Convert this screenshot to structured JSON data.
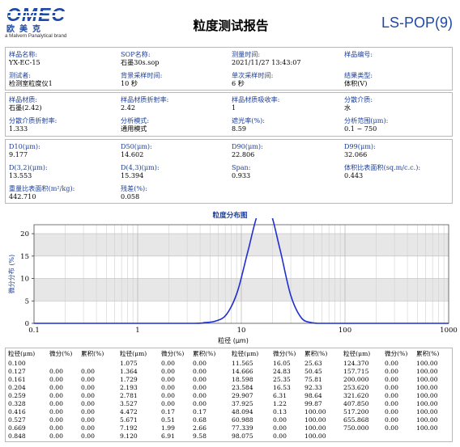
{
  "header": {
    "logo_text": "OMEC",
    "logo_cn": "欧美克",
    "logo_sub": "a Malvern Panalytical brand",
    "title": "粒度测试报告",
    "code": "LS-POP(9)"
  },
  "info1": {
    "sample_name_label": "样品名称:",
    "sample_name": "YX-EC-15",
    "sop_label": "SOP名称:",
    "sop": "石墨30s.sop",
    "time_label": "测量时间:",
    "time": "2021/11/27 13:43:07",
    "sample_no_label": "样品编号:",
    "sample_no": "",
    "tester_label": "测试者:",
    "tester": "检测室粒度仪1",
    "bg_label": "背景采样时间:",
    "bg": "10 秒",
    "single_label": "单次采样时间:",
    "single": "6 秒",
    "result_type_label": "结果类型:",
    "result_type": "体积(V)"
  },
  "info2": {
    "material_label": "样品材质:",
    "material": "石墨(2.42)",
    "ri_label": "样品材质折射率:",
    "ri": "2.42",
    "abs_label": "样品材质吸收率:",
    "abs": "1",
    "medium_label": "分散介质:",
    "medium": "水",
    "medium_ri_label": "分散介质折射率:",
    "medium_ri": "1.333",
    "mode_label": "分析模式:",
    "mode": "通用模式",
    "obsc_label": "遮光率(%):",
    "obsc": "8.59",
    "range_label": "分析范围(μm):",
    "range": "0.1 ~ 750"
  },
  "info3": {
    "d10_label": "D10(μm):",
    "d10": "9.177",
    "d50_label": "D50(μm):",
    "d50": "14.602",
    "d90_label": "D90(μm):",
    "d90": "22.806",
    "d99_label": "D99(μm):",
    "d99": "32.066",
    "d32_label": "D(3,2)(μm):",
    "d32": "13.553",
    "d43_label": "D(4,3)(μm):",
    "d43": "15.394",
    "span_label": "Span:",
    "span": "0.933",
    "ssa_label": "体积比表面积(sq.m/c.c.):",
    "ssa": "0.443",
    "wssa_label": "重量比表面积(m²/kg):",
    "wssa": "442.710",
    "resid_label": "残差(%):",
    "resid": "0.058"
  },
  "chart_data": {
    "type": "line",
    "title": "粒度分布图",
    "xlabel": "粒径 (μm)",
    "ylabel": "微分分布 (%)",
    "x_scale": "log",
    "xlim": [
      0.1,
      1000
    ],
    "ylim": [
      0,
      22
    ],
    "x_ticks": [
      0.1,
      1,
      10,
      100,
      1000
    ],
    "x_tick_labels": [
      "0.1",
      "1",
      "10",
      "100",
      "1000"
    ],
    "y_ticks": [
      0,
      5,
      10,
      15,
      20
    ],
    "grid": true,
    "line_color": "#1f2fd0",
    "x": [
      0.1,
      1,
      3.5,
      4.472,
      5.671,
      7.192,
      9.12,
      11.565,
      14.666,
      18.598,
      23.584,
      29.907,
      37.925,
      48.094,
      55,
      60.988,
      100,
      1000
    ],
    "y": [
      0,
      0,
      0,
      0.17,
      0.51,
      1.99,
      6.91,
      16.05,
      24.83,
      25.35,
      16.53,
      6.31,
      1.22,
      0.13,
      0,
      0,
      0,
      0
    ]
  },
  "table": {
    "headers": [
      "粒径(μm)",
      "微分(%)",
      "累积(%)"
    ],
    "rows": [
      [
        [
          "0.100",
          "",
          ""
        ],
        [
          "0.127",
          "0.00",
          "0.00"
        ],
        [
          "0.161",
          "0.00",
          "0.00"
        ],
        [
          "0.204",
          "0.00",
          "0.00"
        ],
        [
          "0.259",
          "0.00",
          "0.00"
        ],
        [
          "0.328",
          "0.00",
          "0.00"
        ],
        [
          "0.416",
          "0.00",
          "0.00"
        ],
        [
          "0.527",
          "0.00",
          "0.00"
        ],
        [
          "0.669",
          "0.00",
          "0.00"
        ],
        [
          "0.848",
          "0.00",
          "0.00"
        ]
      ],
      [
        [
          "1.075",
          "0.00",
          "0.00"
        ],
        [
          "1.364",
          "0.00",
          "0.00"
        ],
        [
          "1.729",
          "0.00",
          "0.00"
        ],
        [
          "2.193",
          "0.00",
          "0.00"
        ],
        [
          "2.781",
          "0.00",
          "0.00"
        ],
        [
          "3.527",
          "0.00",
          "0.00"
        ],
        [
          "4.472",
          "0.17",
          "0.17"
        ],
        [
          "5.671",
          "0.51",
          "0.68"
        ],
        [
          "7.192",
          "1.99",
          "2.66"
        ],
        [
          "9.120",
          "6.91",
          "9.58"
        ]
      ],
      [
        [
          "11.565",
          "16.05",
          "25.63"
        ],
        [
          "14.666",
          "24.83",
          "50.45"
        ],
        [
          "18.598",
          "25.35",
          "75.81"
        ],
        [
          "23.584",
          "16.53",
          "92.33"
        ],
        [
          "29.907",
          "6.31",
          "98.64"
        ],
        [
          "37.925",
          "1.22",
          "99.87"
        ],
        [
          "48.094",
          "0.13",
          "100.00"
        ],
        [
          "60.988",
          "0.00",
          "100.00"
        ],
        [
          "77.339",
          "0.00",
          "100.00"
        ],
        [
          "98.075",
          "0.00",
          "100.00"
        ]
      ],
      [
        [
          "124.370",
          "0.00",
          "100.00"
        ],
        [
          "157.715",
          "0.00",
          "100.00"
        ],
        [
          "200.000",
          "0.00",
          "100.00"
        ],
        [
          "253.620",
          "0.00",
          "100.00"
        ],
        [
          "321.620",
          "0.00",
          "100.00"
        ],
        [
          "407.850",
          "0.00",
          "100.00"
        ],
        [
          "517.200",
          "0.00",
          "100.00"
        ],
        [
          "655.868",
          "0.00",
          "100.00"
        ],
        [
          "750.000",
          "0.00",
          "100.00"
        ],
        [
          "",
          "",
          ""
        ]
      ]
    ]
  }
}
